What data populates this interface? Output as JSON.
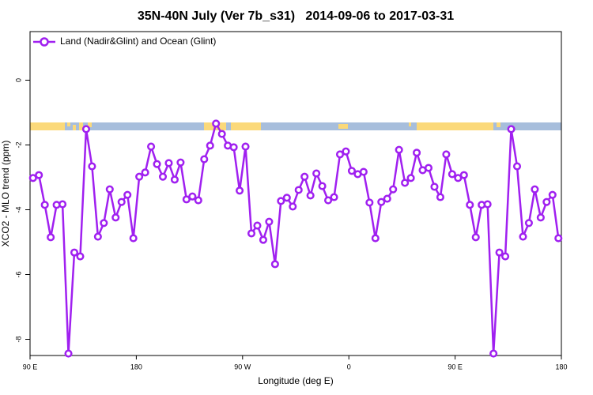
{
  "chart_data": {
    "type": "line",
    "title": "35N-40N July (Ver 7b_s31)   2014-09-06 to 2017-03-31",
    "xlabel": "Longitude (deg E)",
    "ylabel": "XCO2 - MLO trend (ppm)",
    "legend": "top-left",
    "xlim": [
      90,
      540
    ],
    "xticks": [
      {
        "value": 90,
        "label": "90 E"
      },
      180,
      {
        "value": 270,
        "label": "90 W"
      },
      {
        "value": 360,
        "label": "0"
      },
      {
        "value": 450,
        "label": "90 E"
      },
      {
        "value": 540,
        "label": "180"
      }
    ],
    "ylim": [
      -8.5,
      1.5
    ],
    "yticks": [
      0,
      -2,
      -4,
      -6,
      -8
    ],
    "x": [
      92.5,
      97.5,
      102.5,
      107.5,
      112.5,
      117.5,
      122.5,
      127.5,
      132.5,
      137.5,
      142.5,
      147.5,
      152.5,
      157.5,
      162.5,
      167.5,
      172.5,
      177.5,
      182.5,
      187.5,
      192.5,
      197.5,
      202.5,
      207.5,
      212.5,
      217.5,
      222.5,
      227.5,
      232.5,
      237.5,
      242.5,
      247.5,
      252.5,
      257.5,
      262.5,
      267.5,
      272.5,
      277.5,
      282.5,
      287.5,
      292.5,
      297.5,
      302.5,
      307.5,
      312.5,
      317.5,
      322.5,
      327.5,
      332.5,
      337.5,
      342.5,
      347.5,
      352.5,
      357.5,
      362.5,
      367.5,
      372.5,
      377.5,
      382.5,
      387.5,
      392.5,
      397.5,
      402.5,
      407.5,
      412.5,
      417.5,
      422.5,
      427.5,
      432.5,
      437.5,
      442.5,
      447.5,
      452.5,
      457.5,
      462.5,
      467.5,
      472.5,
      477.5,
      482.5,
      487.5,
      492.5,
      497.5,
      502.5,
      507.5,
      512.5,
      517.5,
      522.5,
      527.5,
      532.5,
      537.5
    ],
    "series": [
      {
        "name": "Land (Nadir&Glint) and Ocean (Glint)",
        "color": "#a020f0",
        "values": [
          -3.02,
          -2.93,
          -3.85,
          -4.85,
          -3.85,
          -3.83,
          -8.44,
          -5.32,
          -5.44,
          -1.51,
          -2.66,
          -4.83,
          -4.41,
          -3.37,
          -4.24,
          -3.76,
          -3.54,
          -4.88,
          -2.98,
          -2.85,
          -2.05,
          -2.59,
          -2.98,
          -2.56,
          -3.07,
          -2.54,
          -3.68,
          -3.59,
          -3.71,
          -2.44,
          -2.02,
          -1.34,
          -1.66,
          -2.02,
          -2.07,
          -3.41,
          -2.05,
          -4.73,
          -4.49,
          -4.93,
          -4.37,
          -5.68,
          -3.73,
          -3.63,
          -3.9,
          -3.39,
          -2.98,
          -3.56,
          -2.88,
          -3.27,
          -3.71,
          -3.61,
          -2.29,
          -2.2,
          -2.8,
          -2.9,
          -2.83,
          -3.78,
          -4.88,
          -3.76,
          -3.66,
          -3.37,
          -2.15,
          -3.17,
          -3.02,
          -2.24,
          -2.78,
          -2.71,
          -3.29,
          -3.61,
          -2.29,
          -2.9,
          -3.02,
          -2.93,
          -3.85,
          -4.85,
          -3.85,
          -3.83,
          -8.44,
          -5.32,
          -5.44,
          -1.51,
          -2.66,
          -4.83,
          -4.41,
          -3.37,
          -4.24,
          -3.76,
          -3.54,
          -4.88
        ]
      }
    ]
  }
}
